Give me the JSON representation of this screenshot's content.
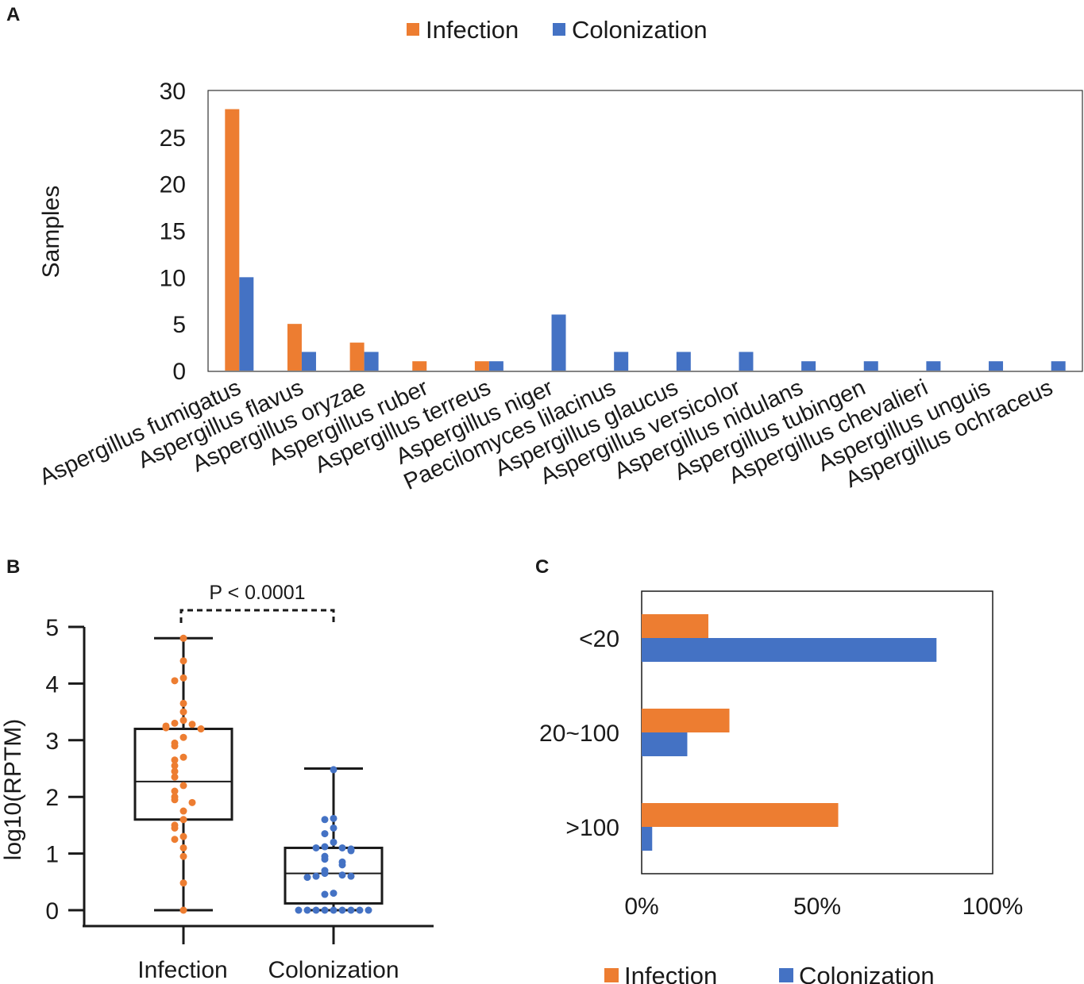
{
  "colors": {
    "infection": "#ED7D31",
    "colonization": "#4472C4",
    "axis": "#1a1a1a"
  },
  "chart_data": [
    {
      "panel": "A",
      "type": "bar",
      "title": "",
      "xlabel": "",
      "ylabel": "Samples",
      "ylim": [
        0,
        30
      ],
      "yticks": [
        "0",
        "5",
        "10",
        "15",
        "20",
        "25",
        "30"
      ],
      "legend_position": "top-center",
      "categories": [
        "Aspergillus fumigatus",
        "Aspergillus flavus",
        "Aspergillus oryzae",
        "Aspergillus ruber",
        "Aspergillus terreus",
        "Aspergillus niger",
        "Paecilomyces lilacinus",
        "Aspergillus glaucus",
        "Aspergillus versicolor",
        "Aspergillus nidulans",
        "Aspergillus tubingen",
        "Aspergillus chevalieri",
        "Aspergillus unguis",
        "Aspergillus ochraceus"
      ],
      "series": [
        {
          "name": "Infection",
          "values": [
            28,
            5,
            3,
            1,
            1,
            0,
            0,
            0,
            0,
            0,
            0,
            0,
            0,
            0
          ]
        },
        {
          "name": "Colonization",
          "values": [
            10,
            2,
            2,
            0,
            1,
            6,
            2,
            2,
            2,
            1,
            1,
            1,
            1,
            1
          ]
        }
      ]
    },
    {
      "panel": "B",
      "type": "box",
      "ylabel": "log10(RPTM)",
      "ylim": [
        0,
        5
      ],
      "yticks": [
        "0",
        "1",
        "2",
        "3",
        "4",
        "5"
      ],
      "categories": [
        "Infection",
        "Colonization"
      ],
      "annotation": "P < 0.0001",
      "boxes": [
        {
          "name": "Infection",
          "min": 0,
          "q1": 1.6,
          "median": 2.27,
          "q3": 3.2,
          "max": 4.8,
          "points": [
            4.8,
            4.4,
            4.1,
            4.05,
            3.65,
            3.5,
            3.35,
            3.3,
            3.28,
            3.25,
            3.22,
            3.2,
            3.05,
            2.95,
            2.9,
            2.7,
            2.65,
            2.55,
            2.45,
            2.35,
            2.2,
            2.1,
            2.0,
            1.95,
            1.9,
            1.75,
            1.6,
            1.5,
            1.45,
            1.3,
            1.25,
            1.1,
            0.95,
            0.48,
            0.0
          ]
        },
        {
          "name": "Colonization",
          "min": 0,
          "q1": 0.12,
          "median": 0.65,
          "q3": 1.1,
          "max": 2.5,
          "points": [
            2.48,
            1.62,
            1.6,
            1.45,
            1.35,
            1.2,
            1.12,
            1.1,
            1.1,
            1.08,
            1.05,
            0.95,
            0.9,
            0.85,
            0.8,
            0.7,
            0.65,
            0.62,
            0.6,
            0.6,
            0.58,
            0.3,
            0.28,
            0.0,
            0.0,
            0.0,
            0.0,
            0.0,
            0.0,
            0.0,
            0.0,
            0.0
          ]
        }
      ]
    },
    {
      "panel": "C",
      "type": "bar",
      "orientation": "horizontal",
      "xlim": [
        0,
        100
      ],
      "xticks": [
        "0%",
        "50%",
        "100%"
      ],
      "categories": [
        "<20",
        "20~100",
        ">100"
      ],
      "legend_position": "bottom-center",
      "series": [
        {
          "name": "Infection",
          "values": [
            19,
            25,
            56
          ]
        },
        {
          "name": "Colonization",
          "values": [
            84,
            13,
            3
          ]
        }
      ]
    }
  ]
}
